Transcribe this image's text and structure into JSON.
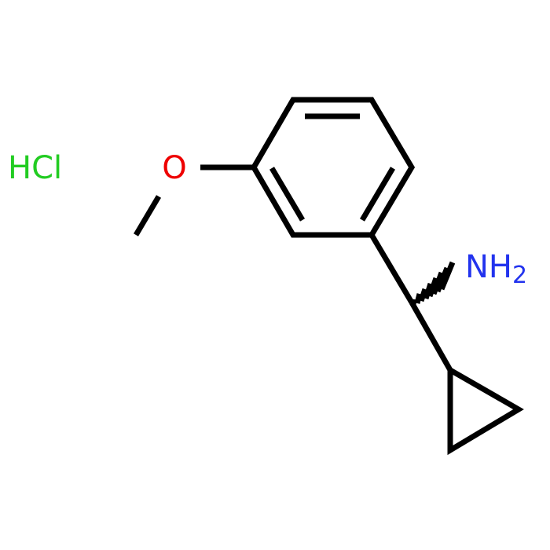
{
  "labels": {
    "salt": "HCl",
    "oxygen": "O",
    "amine": "NH",
    "amine_subscript": "2"
  }
}
